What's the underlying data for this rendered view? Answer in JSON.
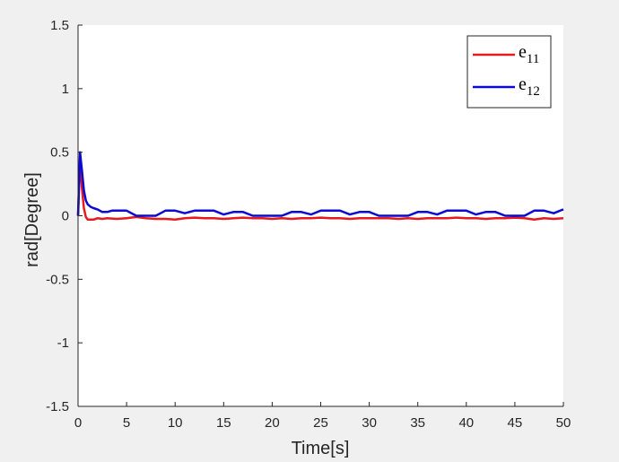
{
  "chart_data": {
    "type": "line",
    "title": "",
    "xlabel": "Time[s]",
    "ylabel": "rad[Degree]",
    "xlim": [
      0,
      50
    ],
    "ylim": [
      -1.5,
      1.5
    ],
    "xticks": [
      "0",
      "5",
      "10",
      "15",
      "20",
      "25",
      "30",
      "35",
      "40",
      "45",
      "50"
    ],
    "yticks": [
      "1.5",
      "1",
      "0.5",
      "0",
      "-0.5",
      "-1",
      "-1.5"
    ],
    "grid": false,
    "legend_position": "top-right",
    "colors": {
      "background": "#f0f0f0",
      "axes_background": "#ffffff",
      "axis": "#262626"
    },
    "series": [
      {
        "label_main": "e",
        "label_sub": "11",
        "color": "#e41a1c",
        "x": [
          0,
          0.2,
          0.4,
          0.6,
          0.8,
          1.0,
          1.3,
          1.6,
          2,
          2.5,
          3,
          4,
          5,
          6,
          7,
          8,
          9,
          10,
          11,
          12,
          13,
          14,
          15,
          16,
          17,
          18,
          19,
          20,
          21,
          22,
          23,
          24,
          25,
          26,
          27,
          28,
          29,
          30,
          31,
          32,
          33,
          34,
          35,
          36,
          37,
          38,
          39,
          40,
          41,
          42,
          43,
          44,
          45,
          46,
          47,
          48,
          49,
          50
        ],
        "y": [
          0,
          0.45,
          0.22,
          0.06,
          -0.01,
          -0.03,
          -0.03,
          -0.03,
          -0.02,
          -0.025,
          -0.02,
          -0.025,
          -0.02,
          -0.01,
          -0.02,
          -0.025,
          -0.025,
          -0.03,
          -0.02,
          -0.015,
          -0.02,
          -0.02,
          -0.025,
          -0.02,
          -0.015,
          -0.02,
          -0.02,
          -0.025,
          -0.02,
          -0.025,
          -0.02,
          -0.02,
          -0.015,
          -0.02,
          -0.02,
          -0.025,
          -0.02,
          -0.02,
          -0.02,
          -0.02,
          -0.025,
          -0.02,
          -0.025,
          -0.02,
          -0.02,
          -0.02,
          -0.015,
          -0.02,
          -0.02,
          -0.025,
          -0.02,
          -0.02,
          -0.015,
          -0.02,
          -0.03,
          -0.02,
          -0.025,
          -0.02
        ]
      },
      {
        "label_main": "e",
        "label_sub": "12",
        "color": "#0a0ad2",
        "x": [
          0,
          0.2,
          0.4,
          0.6,
          0.8,
          1.0,
          1.3,
          1.6,
          2,
          2.5,
          3,
          3.5,
          4,
          5,
          6,
          7,
          8,
          8.5,
          9,
          10,
          11,
          12,
          13,
          14,
          15,
          16,
          17,
          18,
          19,
          20,
          21,
          22,
          23,
          24,
          25,
          26,
          27,
          28,
          29,
          30,
          31,
          32,
          33,
          34,
          35,
          36,
          37,
          38,
          39,
          40,
          41,
          42,
          43,
          44,
          45,
          46,
          47,
          48,
          49,
          50
        ],
        "y": [
          0,
          0.5,
          0.36,
          0.2,
          0.12,
          0.09,
          0.07,
          0.06,
          0.05,
          0.03,
          0.03,
          0.04,
          0.04,
          0.04,
          0.0,
          0.0,
          0.0,
          0.02,
          0.04,
          0.04,
          0.02,
          0.04,
          0.04,
          0.04,
          0.01,
          0.03,
          0.03,
          0.0,
          0.0,
          0.0,
          0.0,
          0.03,
          0.03,
          0.01,
          0.04,
          0.04,
          0.04,
          0.01,
          0.03,
          0.03,
          0.0,
          0.0,
          0.0,
          0.0,
          0.03,
          0.03,
          0.01,
          0.04,
          0.04,
          0.04,
          0.01,
          0.03,
          0.03,
          0.0,
          0.0,
          0.0,
          0.04,
          0.04,
          0.02,
          0.05
        ]
      }
    ]
  }
}
